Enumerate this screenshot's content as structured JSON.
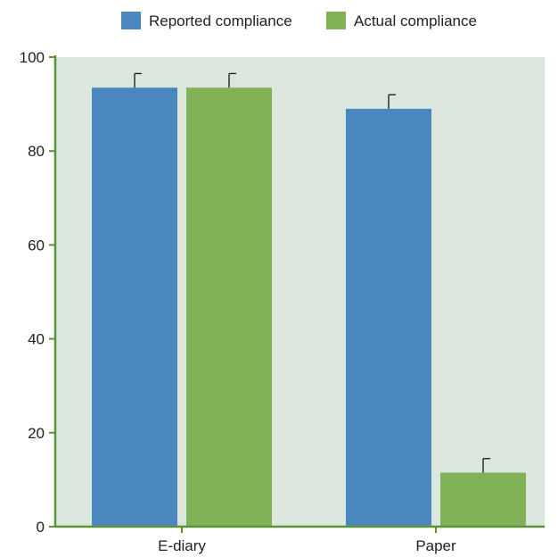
{
  "chart_data": {
    "type": "bar",
    "categories": [
      "E-diary",
      "Paper"
    ],
    "series": [
      {
        "name": "Reported compliance",
        "color": "#4a87bf",
        "values": [
          93.5,
          89
        ],
        "error": [
          3,
          3
        ]
      },
      {
        "name": "Actual compliance",
        "color": "#80b156",
        "values": [
          93.5,
          11.5
        ],
        "error": [
          3,
          3
        ]
      }
    ],
    "title": "",
    "xlabel": "",
    "ylabel": "",
    "ylim": [
      0,
      100
    ],
    "yticks": [
      0,
      20,
      40,
      60,
      80,
      100
    ],
    "grid": false,
    "legend_position": "top",
    "plot_background": "#dbe7de",
    "axis_color": "#5f9137"
  }
}
